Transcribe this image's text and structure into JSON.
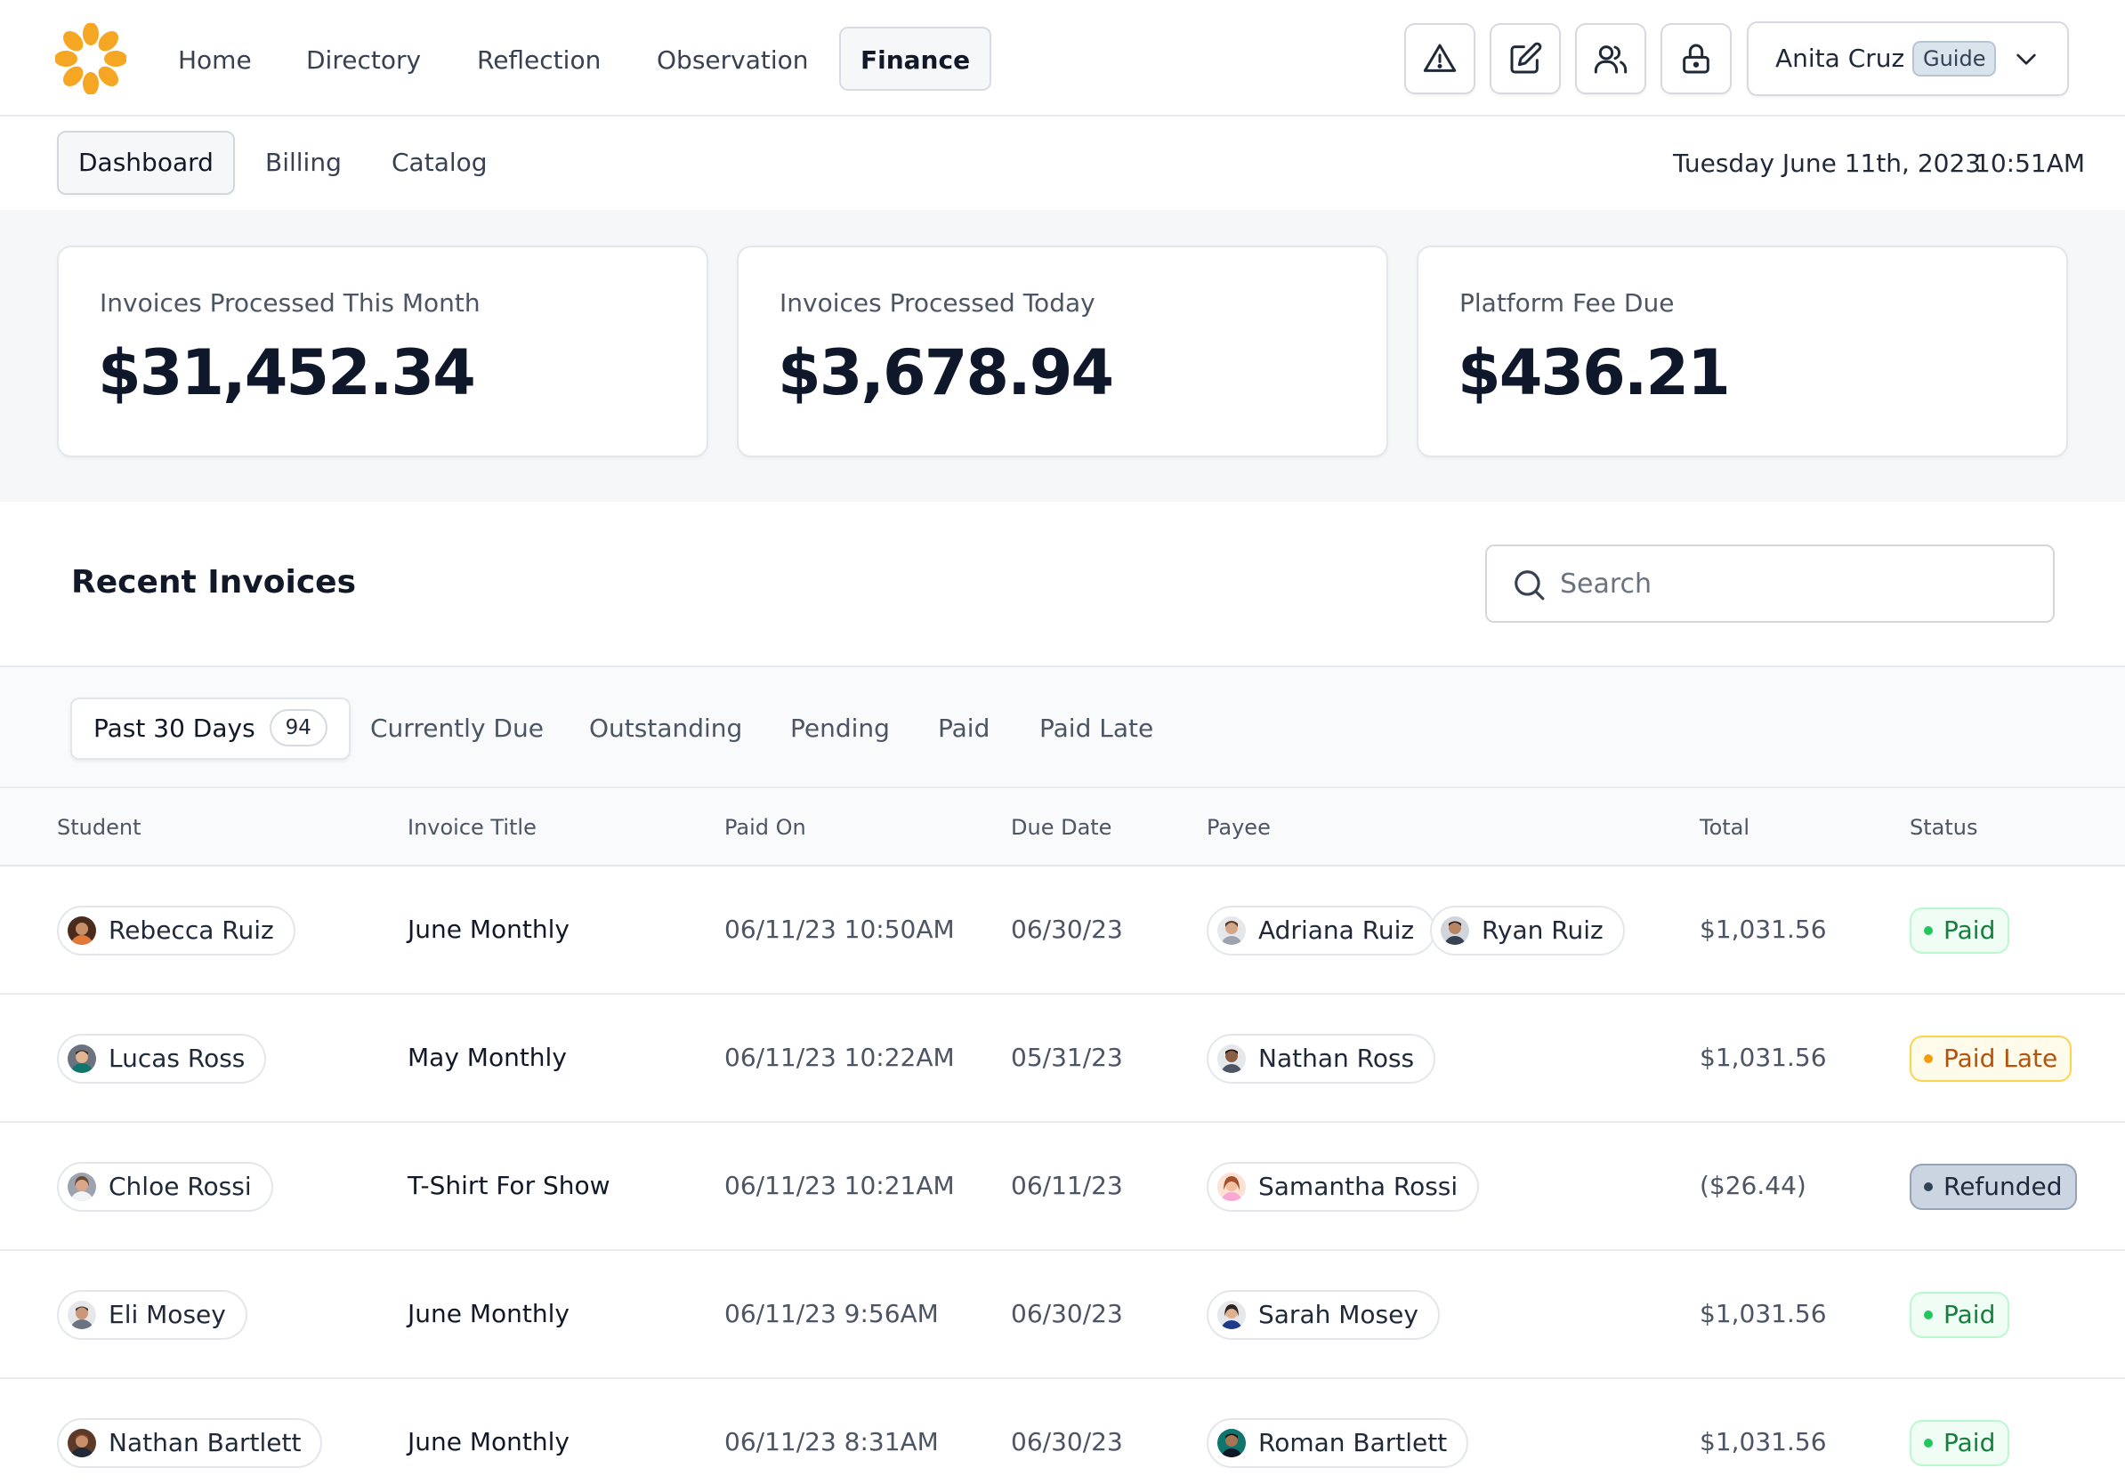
{
  "app": {
    "logo_icon": "sunflower-logo-icon",
    "accent": "#f5a623"
  },
  "nav": {
    "items": [
      "Home",
      "Directory",
      "Reflection",
      "Observation",
      "Finance"
    ],
    "active": "Finance",
    "icon_buttons": [
      "alert-triangle-icon",
      "edit-icon",
      "users-icon",
      "lock-icon"
    ]
  },
  "user": {
    "name": "Anita Cruz",
    "role": "Guide"
  },
  "subnav": {
    "items": [
      "Dashboard",
      "Billing",
      "Catalog"
    ],
    "active": "Dashboard",
    "date": "Tuesday June 11th, 2023",
    "time": "10:51AM"
  },
  "stats": [
    {
      "label": "Invoices Processed This Month",
      "value": "$31,452.34"
    },
    {
      "label": "Invoices Processed Today",
      "value": "$3,678.94"
    },
    {
      "label": "Platform Fee Due",
      "value": "$436.21"
    }
  ],
  "invoices": {
    "title": "Recent Invoices",
    "search_placeholder": "Search",
    "tabs": [
      {
        "label": "Past 30 Days",
        "count": "94"
      },
      {
        "label": "Currently Due"
      },
      {
        "label": "Outstanding"
      },
      {
        "label": "Pending"
      },
      {
        "label": "Paid"
      },
      {
        "label": "Paid Late"
      }
    ],
    "columns": [
      "Student",
      "Invoice Title",
      "Paid On",
      "Due Date",
      "Payee",
      "Total",
      "Status"
    ],
    "rows": [
      {
        "student": "Rebecca Ruiz",
        "title": "June Monthly",
        "paid_on": "06/11/23 10:50AM",
        "due": "06/30/23",
        "payees": [
          "Adriana Ruiz",
          "Ryan Ruiz"
        ],
        "total": "$1,031.56",
        "status": "Paid"
      },
      {
        "student": "Lucas Ross",
        "title": "May Monthly",
        "paid_on": "06/11/23 10:22AM",
        "due": "05/31/23",
        "payees": [
          "Nathan Ross"
        ],
        "total": "$1,031.56",
        "status": "Paid Late"
      },
      {
        "student": "Chloe Rossi",
        "title": "T-Shirt For Show",
        "paid_on": "06/11/23 10:21AM",
        "due": "06/11/23",
        "payees": [
          "Samantha Rossi"
        ],
        "total": "($26.44)",
        "status": "Refunded"
      },
      {
        "student": "Eli Mosey",
        "title": "June Monthly",
        "paid_on": "06/11/23 9:56AM",
        "due": "06/30/23",
        "payees": [
          "Sarah Mosey"
        ],
        "total": "$1,031.56",
        "status": "Paid"
      },
      {
        "student": "Nathan Bartlett",
        "title": "June Monthly",
        "paid_on": "06/11/23 8:31AM",
        "due": "06/30/23",
        "payees": [
          "Roman Bartlett"
        ],
        "total": "$1,031.56",
        "status": "Paid"
      }
    ]
  },
  "status_colors": {
    "Paid": "#22c55e",
    "Paid Late": "#f59e0b",
    "Refunded": "#334155"
  }
}
